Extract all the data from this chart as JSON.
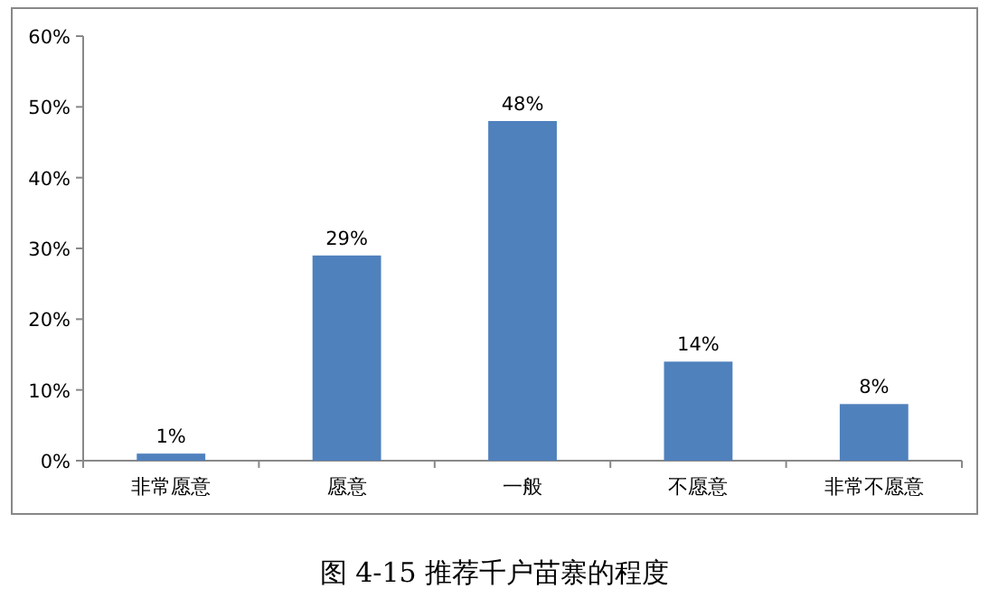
{
  "chart_data": {
    "type": "bar",
    "title": "图 4-15 推荐千户苗寨的程度",
    "categories": [
      "非常愿意",
      "愿意",
      "一般",
      "不愿意",
      "非常不愿意"
    ],
    "values": [
      1,
      29,
      48,
      14,
      8
    ],
    "value_labels": [
      "1%",
      "29%",
      "48%",
      "14%",
      "8%"
    ],
    "color": "#4f81bd",
    "ylim": [
      0,
      60
    ],
    "yticks": [
      {
        "value": 0,
        "label": "0%"
      },
      {
        "value": 10,
        "label": "10%"
      },
      {
        "value": 20,
        "label": "20%"
      },
      {
        "value": 30,
        "label": "30%"
      },
      {
        "value": 40,
        "label": "40%"
      },
      {
        "value": 50,
        "label": "50%"
      },
      {
        "value": 60,
        "label": "60%"
      }
    ],
    "grid": false
  }
}
